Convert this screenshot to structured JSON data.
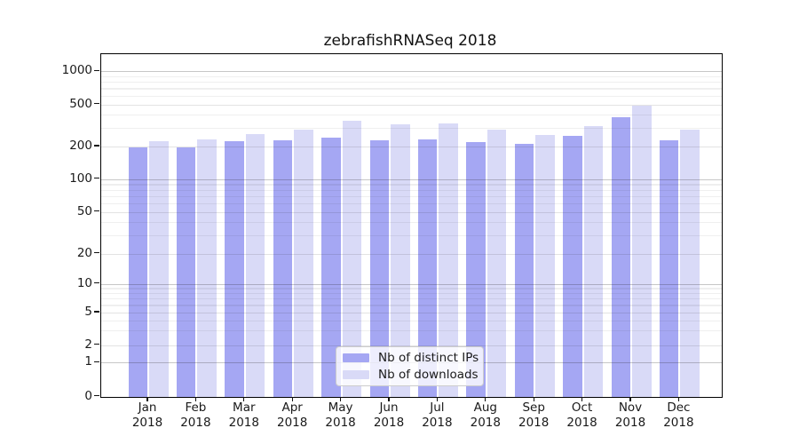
{
  "chart_data": {
    "type": "bar",
    "title": "zebrafishRNASeq 2018",
    "categories": [
      "Jan",
      "Feb",
      "Mar",
      "Apr",
      "May",
      "Jun",
      "Jul",
      "Aug",
      "Sep",
      "Oct",
      "Nov",
      "Dec"
    ],
    "x_tick_second_line": "2018",
    "series": [
      {
        "name": "Nb of distinct IPs",
        "color": "#a5a7f3",
        "values": [
          195,
          196,
          226,
          230,
          244,
          229,
          233,
          222,
          211,
          252,
          381,
          229
        ]
      },
      {
        "name": "Nb of downloads",
        "color": "#d9daf7",
        "values": [
          225,
          233,
          261,
          291,
          350,
          322,
          328,
          286,
          258,
          313,
          490,
          286
        ]
      }
    ],
    "yscale": "log-like with linear zero region",
    "ytick_values": [
      0,
      1,
      2,
      5,
      10,
      20,
      50,
      100,
      200,
      500,
      1000
    ],
    "ytick_labels": [
      "0",
      "1",
      "2",
      "5",
      "10",
      "20",
      "50",
      "100",
      "200",
      "500",
      "1000"
    ],
    "major_gridlines": [
      1,
      10,
      100,
      1000
    ],
    "minor_gridlines": [
      3,
      4,
      6,
      7,
      8,
      9,
      30,
      40,
      60,
      70,
      80,
      90,
      300,
      400,
      600,
      700,
      800,
      900
    ],
    "grid": true,
    "legend": {
      "position": "lower center",
      "entries": [
        "Nb of distinct IPs",
        "Nb of downloads"
      ]
    },
    "colors": {
      "axis": "#000000",
      "tick_text": "#1a1a1a",
      "major_grid": "#c3c3c3",
      "labeled_grid": "#dcdcdc",
      "minor_grid": "#ececec",
      "background": "#ffffff"
    }
  }
}
